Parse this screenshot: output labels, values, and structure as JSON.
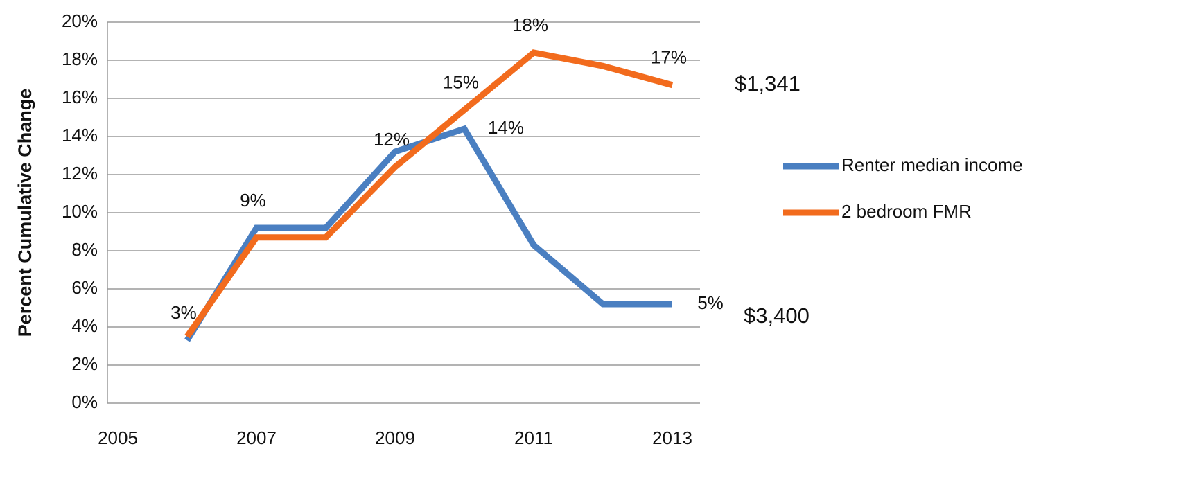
{
  "chart_data": {
    "type": "line",
    "y_label": "Percent Cumulative Change",
    "x": [
      2006,
      2007,
      2008,
      2009,
      2010,
      2011,
      2012,
      2013
    ],
    "xlim": [
      2004.85,
      2013.4
    ],
    "xticks": [
      2005,
      2007,
      2009,
      2011,
      2013
    ],
    "ylim": [
      0,
      20
    ],
    "yticks": [
      {
        "value": 0,
        "label": "0%"
      },
      {
        "value": 2,
        "label": "2%"
      },
      {
        "value": 4,
        "label": "4%"
      },
      {
        "value": 6,
        "label": "6%"
      },
      {
        "value": 8,
        "label": "8%"
      },
      {
        "value": 10,
        "label": "10%"
      },
      {
        "value": 12,
        "label": "12%"
      },
      {
        "value": 14,
        "label": "14%"
      },
      {
        "value": 16,
        "label": "16%"
      },
      {
        "value": 18,
        "label": "18%"
      },
      {
        "value": 20,
        "label": "20%"
      }
    ],
    "grid": true,
    "legend": "right",
    "series": [
      {
        "name": "Renter median income",
        "color": "#4a7fc1",
        "values": [
          3.3,
          9.2,
          9.2,
          13.2,
          14.4,
          8.3,
          5.2,
          5.2
        ],
        "value_labels": [
          "3%",
          "9%",
          null,
          null,
          "14%",
          null,
          null,
          "5%"
        ]
      },
      {
        "name": "2 bedroom FMR",
        "color": "#f26b1d",
        "values": [
          3.5,
          8.7,
          8.7,
          12.4,
          15.4,
          18.4,
          17.7,
          16.7
        ],
        "value_labels": [
          null,
          null,
          null,
          "12%",
          "15%",
          "18%",
          null,
          "17%"
        ]
      }
    ],
    "annotations": [
      "$1,341",
      "$3,400"
    ]
  }
}
